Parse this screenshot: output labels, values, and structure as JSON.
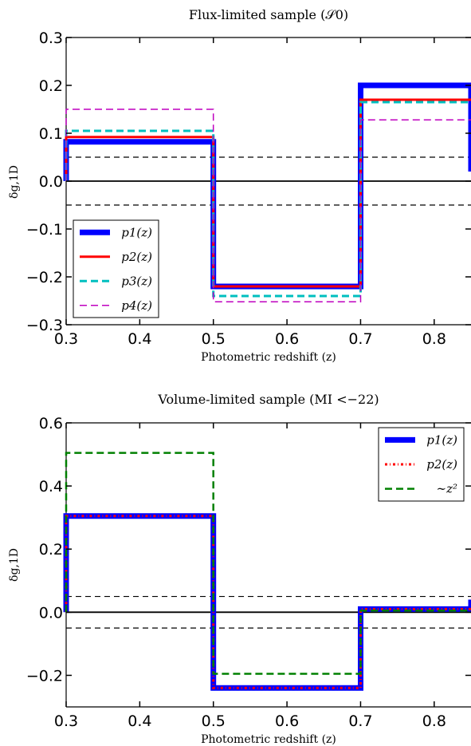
{
  "chart_data": [
    {
      "type": "line",
      "title": "Flux-limited sample (𝒮0)",
      "xlabel": "Photometric redshift (z)",
      "ylabel": "δg,1D",
      "xlim": [
        0.3,
        0.85
      ],
      "ylim": [
        -0.3,
        0.3
      ],
      "x_ticks": [
        "0.3",
        "0.4",
        "0.5",
        "0.6",
        "0.7",
        "0.8"
      ],
      "y_ticks": [
        "−0.3",
        "−0.2",
        "−0.1",
        "0.0",
        "0.1",
        "0.2",
        "0.3"
      ],
      "legend_position": "lower-left",
      "series": [
        {
          "name": "p1(z)",
          "color": "#0000ff",
          "style": "solid",
          "width": 7,
          "x": [
            0.3,
            0.3,
            0.5,
            0.5,
            0.7,
            0.7,
            0.85,
            0.85
          ],
          "y": [
            0.0,
            0.082,
            0.082,
            -0.22,
            -0.22,
            0.2,
            0.2,
            0.02
          ]
        },
        {
          "name": "p2(z)",
          "color": "#ff0000",
          "style": "solid",
          "width": 3,
          "x": [
            0.3,
            0.3,
            0.5,
            0.5,
            0.7,
            0.7,
            0.85
          ],
          "y": [
            0.0,
            0.092,
            0.092,
            -0.22,
            -0.22,
            0.17,
            0.17
          ]
        },
        {
          "name": "p3(z)",
          "color": "#00bfbf",
          "style": "dashed",
          "width": 3,
          "x": [
            0.3,
            0.3,
            0.5,
            0.5,
            0.7,
            0.7,
            0.85
          ],
          "y": [
            0.0,
            0.105,
            0.105,
            -0.24,
            -0.24,
            0.165,
            0.165
          ]
        },
        {
          "name": "p4(z)",
          "color": "#bf00bf",
          "style": "dashed",
          "width": 1.5,
          "x": [
            0.3,
            0.3,
            0.5,
            0.5,
            0.7,
            0.7,
            0.85
          ],
          "y": [
            0.0,
            0.15,
            0.15,
            -0.252,
            -0.252,
            0.128,
            0.128
          ]
        }
      ],
      "reference_lines": [
        {
          "y": 0.0,
          "style": "solid",
          "color": "#000000"
        },
        {
          "y": 0.05,
          "style": "dashed",
          "color": "#000000"
        },
        {
          "y": -0.05,
          "style": "dashed",
          "color": "#000000"
        }
      ]
    },
    {
      "type": "line",
      "title": "Volume-limited sample (MI <−22)",
      "xlabel": "Photometric redshift (z)",
      "ylabel": "δg,1D",
      "xlim": [
        0.3,
        0.85
      ],
      "ylim": [
        -0.3,
        0.6
      ],
      "x_ticks": [
        "0.3",
        "0.4",
        "0.5",
        "0.6",
        "0.7",
        "0.8"
      ],
      "y_ticks": [
        "−0.2",
        "0.0",
        "0.2",
        "0.4",
        "0.6"
      ],
      "legend_position": "top-right",
      "series": [
        {
          "name": "p1(z)",
          "color": "#0000ff",
          "style": "solid",
          "width": 7,
          "x": [
            0.3,
            0.3,
            0.5,
            0.5,
            0.7,
            0.7,
            0.85,
            0.85
          ],
          "y": [
            0.0,
            0.305,
            0.305,
            -0.24,
            -0.24,
            0.01,
            0.01,
            0.04
          ]
        },
        {
          "name": "p2(z)",
          "color": "#ff0000",
          "style": "dashdot",
          "width": 3,
          "x": [
            0.3,
            0.3,
            0.5,
            0.5,
            0.7,
            0.7,
            0.85
          ],
          "y": [
            0.0,
            0.305,
            0.305,
            -0.24,
            -0.24,
            0.01,
            0.01
          ]
        },
        {
          "name": "∼z²",
          "color": "#008000",
          "style": "dashed",
          "width": 2.5,
          "x": [
            0.3,
            0.3,
            0.5,
            0.5,
            0.7,
            0.7,
            0.85
          ],
          "y": [
            0.0,
            0.505,
            0.505,
            -0.195,
            -0.195,
            0.005,
            0.005
          ]
        }
      ],
      "reference_lines": [
        {
          "y": 0.0,
          "style": "solid",
          "color": "#000000"
        },
        {
          "y": 0.05,
          "style": "dashed",
          "color": "#000000"
        },
        {
          "y": -0.05,
          "style": "dashed",
          "color": "#000000"
        }
      ]
    }
  ]
}
